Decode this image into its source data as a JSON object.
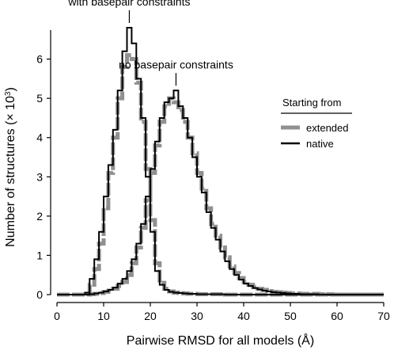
{
  "chart_data": {
    "type": "line",
    "xlabel": "Pairwise RMSD for all models (Å)",
    "ylabel_main": "Number of structures (× 10",
    "ylabel_exp": "3",
    "ylabel_close": ")",
    "xlim": [
      0,
      70
    ],
    "ylim": [
      0,
      6.9
    ],
    "xticks": [
      "0",
      "10",
      "20",
      "30",
      "40",
      "50",
      "60",
      "70"
    ],
    "yticks": [
      "0",
      "1",
      "2",
      "3",
      "4",
      "5",
      "6"
    ],
    "grid": false,
    "legend": {
      "title": "Starting from",
      "placement": "right",
      "entries": [
        {
          "label": "extended",
          "color": "#909090"
        },
        {
          "label": "native",
          "color": "#000000"
        }
      ]
    },
    "annotations": [
      {
        "text": "with basepair constraints",
        "x": 15.5,
        "y": 6.8
      },
      {
        "text": "no basepair constraints",
        "x": 25.5,
        "y": 5.2
      }
    ],
    "bin_width": 1,
    "x_start": 0,
    "series": [
      {
        "name": "with basepair constraints — native",
        "color": "#000000",
        "values": [
          0,
          0,
          0,
          0,
          0,
          0,
          0.05,
          0.4,
          0.9,
          1.6,
          2.5,
          3.3,
          4.2,
          5.2,
          6.2,
          6.8,
          6.4,
          5.5,
          4.5,
          3.0,
          1.6,
          0.6,
          0.25,
          0.12,
          0.07,
          0.05,
          0.04,
          0.03,
          0.02,
          0.02,
          0.01,
          0.01,
          0.01,
          0.01,
          0.01,
          0.01,
          0,
          0,
          0,
          0,
          0,
          0,
          0,
          0,
          0,
          0,
          0,
          0,
          0,
          0,
          0,
          0,
          0,
          0,
          0,
          0,
          0,
          0,
          0,
          0,
          0,
          0,
          0,
          0,
          0,
          0,
          0,
          0,
          0,
          0
        ]
      },
      {
        "name": "with basepair constraints — extended",
        "color": "#909090",
        "values": [
          0,
          0,
          0,
          0,
          0,
          0,
          0.02,
          0.25,
          0.65,
          1.3,
          2.2,
          3.1,
          4.0,
          5.0,
          5.8,
          6.1,
          6.0,
          5.4,
          4.4,
          3.2,
          1.9,
          0.8,
          0.3,
          0.15,
          0.08,
          0.05,
          0.04,
          0.03,
          0.02,
          0.02,
          0.01,
          0.01,
          0.01,
          0.01,
          0.01,
          0.01,
          0,
          0,
          0,
          0,
          0,
          0,
          0,
          0,
          0,
          0,
          0,
          0,
          0,
          0,
          0,
          0,
          0,
          0,
          0,
          0,
          0,
          0,
          0,
          0,
          0,
          0,
          0,
          0,
          0,
          0,
          0,
          0,
          0,
          0
        ]
      },
      {
        "name": "no basepair constraints — native",
        "color": "#000000",
        "values": [
          0,
          0,
          0,
          0,
          0,
          0,
          0,
          0.01,
          0.03,
          0.05,
          0.08,
          0.12,
          0.18,
          0.28,
          0.4,
          0.6,
          0.9,
          1.3,
          1.8,
          2.5,
          3.2,
          3.9,
          4.5,
          4.9,
          5.0,
          5.2,
          4.8,
          4.5,
          4.0,
          3.5,
          3.0,
          2.6,
          2.1,
          1.7,
          1.4,
          1.1,
          0.85,
          0.65,
          0.5,
          0.38,
          0.28,
          0.22,
          0.17,
          0.13,
          0.1,
          0.08,
          0.06,
          0.05,
          0.04,
          0.03,
          0.02,
          0.02,
          0.01,
          0.01,
          0.01,
          0.01,
          0,
          0,
          0,
          0,
          0,
          0,
          0,
          0,
          0,
          0,
          0,
          0,
          0,
          0
        ]
      },
      {
        "name": "no basepair constraints — extended",
        "color": "#909090",
        "values": [
          0,
          0,
          0,
          0,
          0,
          0,
          0,
          0.01,
          0.02,
          0.04,
          0.07,
          0.1,
          0.15,
          0.22,
          0.32,
          0.5,
          0.8,
          1.2,
          1.7,
          2.4,
          3.1,
          3.8,
          4.4,
          4.8,
          5.0,
          4.9,
          4.7,
          4.4,
          4.0,
          3.6,
          3.1,
          2.7,
          2.2,
          1.8,
          1.5,
          1.2,
          0.95,
          0.72,
          0.55,
          0.42,
          0.32,
          0.25,
          0.19,
          0.15,
          0.12,
          0.09,
          0.07,
          0.06,
          0.05,
          0.04,
          0.03,
          0.03,
          0.02,
          0.02,
          0.02,
          0.02,
          0.01,
          0.01,
          0.01,
          0,
          0,
          0,
          0,
          0,
          0,
          0,
          0,
          0,
          0,
          0
        ]
      }
    ]
  }
}
